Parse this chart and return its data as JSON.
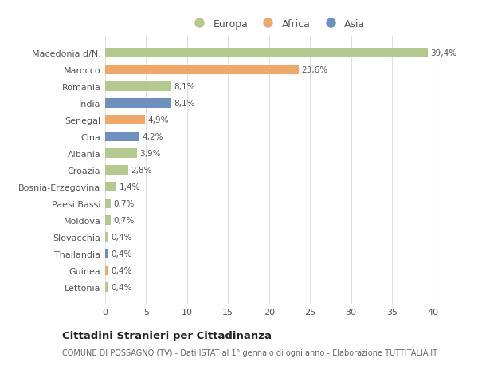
{
  "categories": [
    "Macedonia d/N.",
    "Marocco",
    "Romania",
    "India",
    "Senegal",
    "Cina",
    "Albania",
    "Croazia",
    "Bosnia-Erzegovina",
    "Paesi Bassi",
    "Moldova",
    "Slovacchia",
    "Thailandia",
    "Guinea",
    "Lettonia"
  ],
  "values": [
    39.4,
    23.6,
    8.1,
    8.1,
    4.9,
    4.2,
    3.9,
    2.8,
    1.4,
    0.7,
    0.7,
    0.4,
    0.4,
    0.4,
    0.4
  ],
  "labels": [
    "39,4%",
    "23,6%",
    "8,1%",
    "8,1%",
    "4,9%",
    "4,2%",
    "3,9%",
    "2,8%",
    "1,4%",
    "0,7%",
    "0,7%",
    "0,4%",
    "0,4%",
    "0,4%",
    "0,4%"
  ],
  "colors": [
    "#b5c98e",
    "#f0a868",
    "#b5c98e",
    "#6e8fbf",
    "#f0a868",
    "#6e8fbf",
    "#b5c98e",
    "#b5c98e",
    "#b5c98e",
    "#b5c98e",
    "#b5c98e",
    "#b5c98e",
    "#6e8fbf",
    "#f0a868",
    "#b5c98e"
  ],
  "legend_labels": [
    "Europa",
    "Africa",
    "Asia"
  ],
  "legend_colors": [
    "#b5c98e",
    "#f0a868",
    "#6e8fbf"
  ],
  "xlim": [
    0,
    42
  ],
  "xticks": [
    0,
    5,
    10,
    15,
    20,
    25,
    30,
    35,
    40
  ],
  "title": "Cittadini Stranieri per Cittadinanza",
  "subtitle": "COMUNE DI POSSAGNO (TV) - Dati ISTAT al 1° gennaio di ogni anno - Elaborazione TUTTITALIA.IT",
  "bg_color": "#ffffff",
  "plot_bg_color": "#ffffff",
  "grid_color": "#e0e0e0"
}
